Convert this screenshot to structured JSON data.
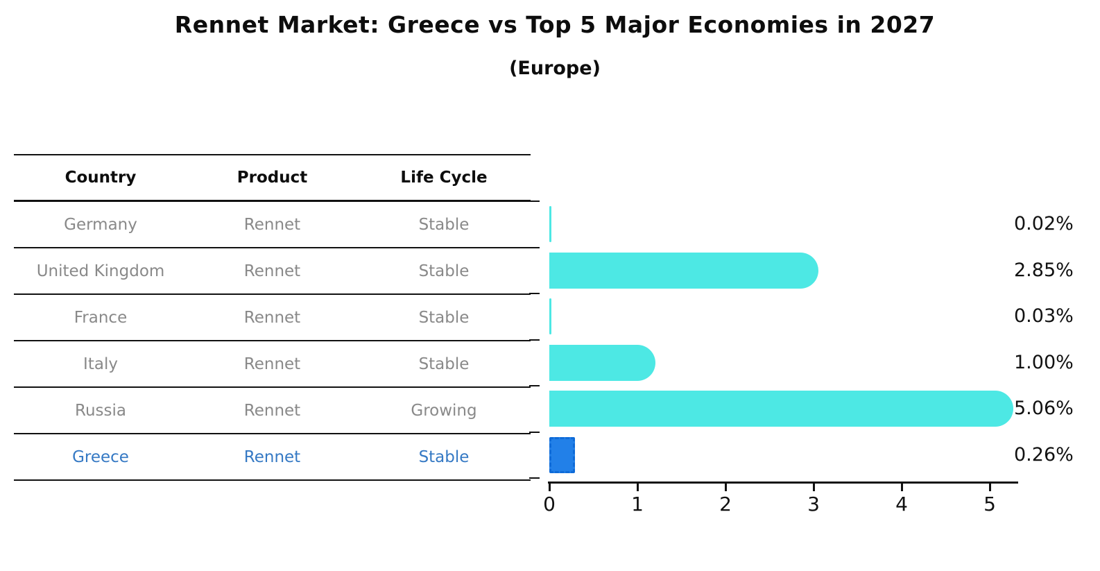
{
  "title": "Rennet Market: Greece vs Top 5 Major Economies in 2027",
  "subtitle": "(Europe)",
  "table": {
    "headers": [
      "Country",
      "Product",
      "Life Cycle"
    ],
    "rows": [
      {
        "country": "Germany",
        "product": "Rennet",
        "life_cycle": "Stable",
        "highlight": false
      },
      {
        "country": "United Kingdom",
        "product": "Rennet",
        "life_cycle": "Stable",
        "highlight": false
      },
      {
        "country": "France",
        "product": "Rennet",
        "life_cycle": "Stable",
        "highlight": false
      },
      {
        "country": "Italy",
        "product": "Rennet",
        "life_cycle": "Stable",
        "highlight": false
      },
      {
        "country": "Russia",
        "product": "Rennet",
        "life_cycle": "Growing",
        "highlight": false
      },
      {
        "country": "Greece",
        "product": "Rennet",
        "life_cycle": "Stable",
        "highlight": true
      }
    ]
  },
  "chart_data": {
    "type": "bar",
    "orientation": "horizontal",
    "title": "Rennet Market: Greece vs Top 5 Major Economies in 2027",
    "subtitle": "(Europe)",
    "categories": [
      "Germany",
      "United Kingdom",
      "France",
      "Italy",
      "Russia",
      "Greece"
    ],
    "values": [
      0.02,
      2.85,
      0.03,
      1.0,
      5.06,
      0.26
    ],
    "value_labels": [
      "0.02%",
      "2.85%",
      "0.03%",
      "1.00%",
      "5.06%",
      "0.26%"
    ],
    "highlight_index": 5,
    "x_tick_labels": [
      "0",
      "1",
      "2",
      "3",
      "4",
      "5"
    ],
    "xlim": [
      0,
      5.3
    ],
    "grid": false,
    "legend": "none",
    "colors": {
      "bar_default": "#4DE8E4",
      "bar_highlight_fill": "#2280E8",
      "bar_highlight_border": "#0F6BD8",
      "highlight_text": "#3579C4",
      "row_text": "#898989",
      "header_text": "#0d0d0d",
      "axis_and_labels": "#111111"
    }
  }
}
